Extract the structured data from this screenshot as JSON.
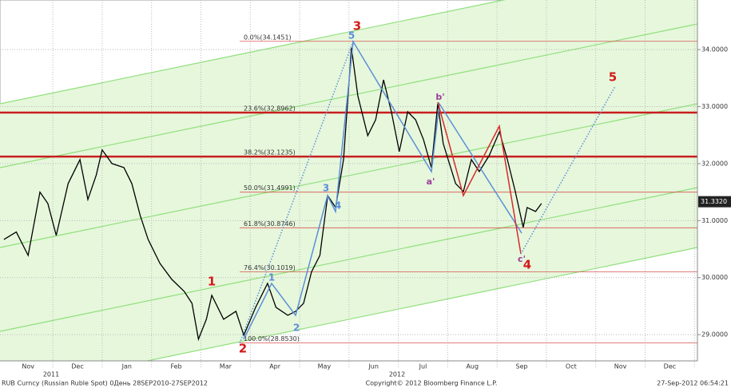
{
  "chart_data": {
    "type": "line",
    "color": "#000000",
    "xlim": [
      -0.57,
      13.56
    ],
    "xticks": [
      {
        "value": 0,
        "label": "Nov"
      },
      {
        "value": 1,
        "label": "Dec"
      },
      {
        "value": 2,
        "label": "Jan"
      },
      {
        "value": 3,
        "label": "Feb"
      },
      {
        "value": 4,
        "label": "Mar"
      },
      {
        "value": 5,
        "label": "Apr"
      },
      {
        "value": 6,
        "label": "May"
      },
      {
        "value": 7,
        "label": "Jun"
      },
      {
        "value": 8,
        "label": "Jul"
      },
      {
        "value": 9,
        "label": "Aug"
      },
      {
        "value": 10,
        "label": "Sep"
      },
      {
        "value": 11,
        "label": "Oct"
      },
      {
        "value": 12,
        "label": "Nov"
      },
      {
        "value": 13,
        "label": "Dec"
      }
    ],
    "year_labels": [
      "2011",
      "2012"
    ],
    "ylim": [
      28.54,
      34.87
    ],
    "yticks": [
      {
        "value": 29,
        "label": "29.0000"
      },
      {
        "value": 30,
        "label": "30.0000"
      },
      {
        "value": 31,
        "label": "31.0000"
      },
      {
        "value": 32,
        "label": "32.0000"
      },
      {
        "value": 33,
        "label": "33.0000"
      },
      {
        "value": 34,
        "label": "34.0000"
      }
    ],
    "grid": true,
    "x": [
      -0.49,
      -0.24,
      0,
      0.24,
      0.4,
      0.57,
      0.81,
      1.05,
      1.21,
      1.38,
      1.5,
      1.7,
      1.94,
      2.1,
      2.27,
      2.43,
      2.67,
      2.91,
      3.16,
      3.32,
      3.45,
      3.61,
      3.72,
      3.96,
      4.21,
      4.37,
      4.61,
      4.85,
      5.02,
      5.26,
      5.42,
      5.58,
      5.74,
      5.91,
      6.07,
      6.23,
      6.39,
      6.55,
      6.68,
      6.88,
      7.04,
      7.2,
      7.36,
      7.52,
      7.69,
      7.85,
      8.01,
      8.17,
      8.3,
      8.41,
      8.66,
      8.82,
      8.98,
      9.14,
      9.34,
      9.55,
      9.71,
      9.87,
      10.03,
      10.11,
      10.28,
      10.4
    ],
    "values": [
      30.67,
      30.8,
      30.39,
      31.5,
      31.3,
      30.74,
      31.65,
      32.07,
      31.37,
      31.8,
      32.24,
      32.0,
      31.93,
      31.65,
      31.09,
      30.67,
      30.25,
      29.97,
      29.76,
      29.55,
      28.92,
      29.27,
      29.69,
      29.27,
      29.41,
      28.99,
      29.48,
      29.9,
      29.48,
      29.34,
      29.41,
      29.55,
      30.1,
      30.39,
      31.44,
      31.23,
      32.07,
      34.03,
      33.19,
      32.49,
      32.77,
      33.47,
      32.91,
      32.21,
      32.91,
      32.77,
      32.42,
      31.93,
      33.05,
      32.35,
      31.65,
      31.51,
      32.07,
      31.86,
      32.14,
      32.56,
      32.07,
      31.51,
      30.88,
      31.23,
      31.16,
      31.3
    ],
    "last_price": {
      "value": 31.332,
      "label": "31.3320"
    },
    "fib_levels": [
      {
        "value": 34.1451,
        "label": "0.0%(34.1451)"
      },
      {
        "value": 32.8962,
        "label": "23.6%(32.8962)"
      },
      {
        "value": 32.1235,
        "label": "38.2%(32.1235)"
      },
      {
        "value": 31.4991,
        "label": "50.0%(31.4991)"
      },
      {
        "value": 30.8746,
        "label": "61.8%(30.8746)"
      },
      {
        "value": 30.1019,
        "label": "76.4%(30.1019)"
      },
      {
        "value": 28.853,
        "label": "100.0%(28.8530)"
      }
    ],
    "wave_labels_red": [
      "1",
      "2",
      "3",
      "4",
      "5"
    ],
    "wave_labels_blue": [
      "1",
      "2",
      "3",
      "4",
      "5"
    ],
    "wave_labels_purple": [
      "a'",
      "b'",
      "c'"
    ],
    "footer_left": "RUB Curncy (Russian Ruble Spot) 0День 28SEP2010-27SEP2012",
    "footer_center": "Copyright© 2012 Bloomberg Finance L.P.",
    "footer_right": "27-Sep-2012 06:54:21"
  }
}
